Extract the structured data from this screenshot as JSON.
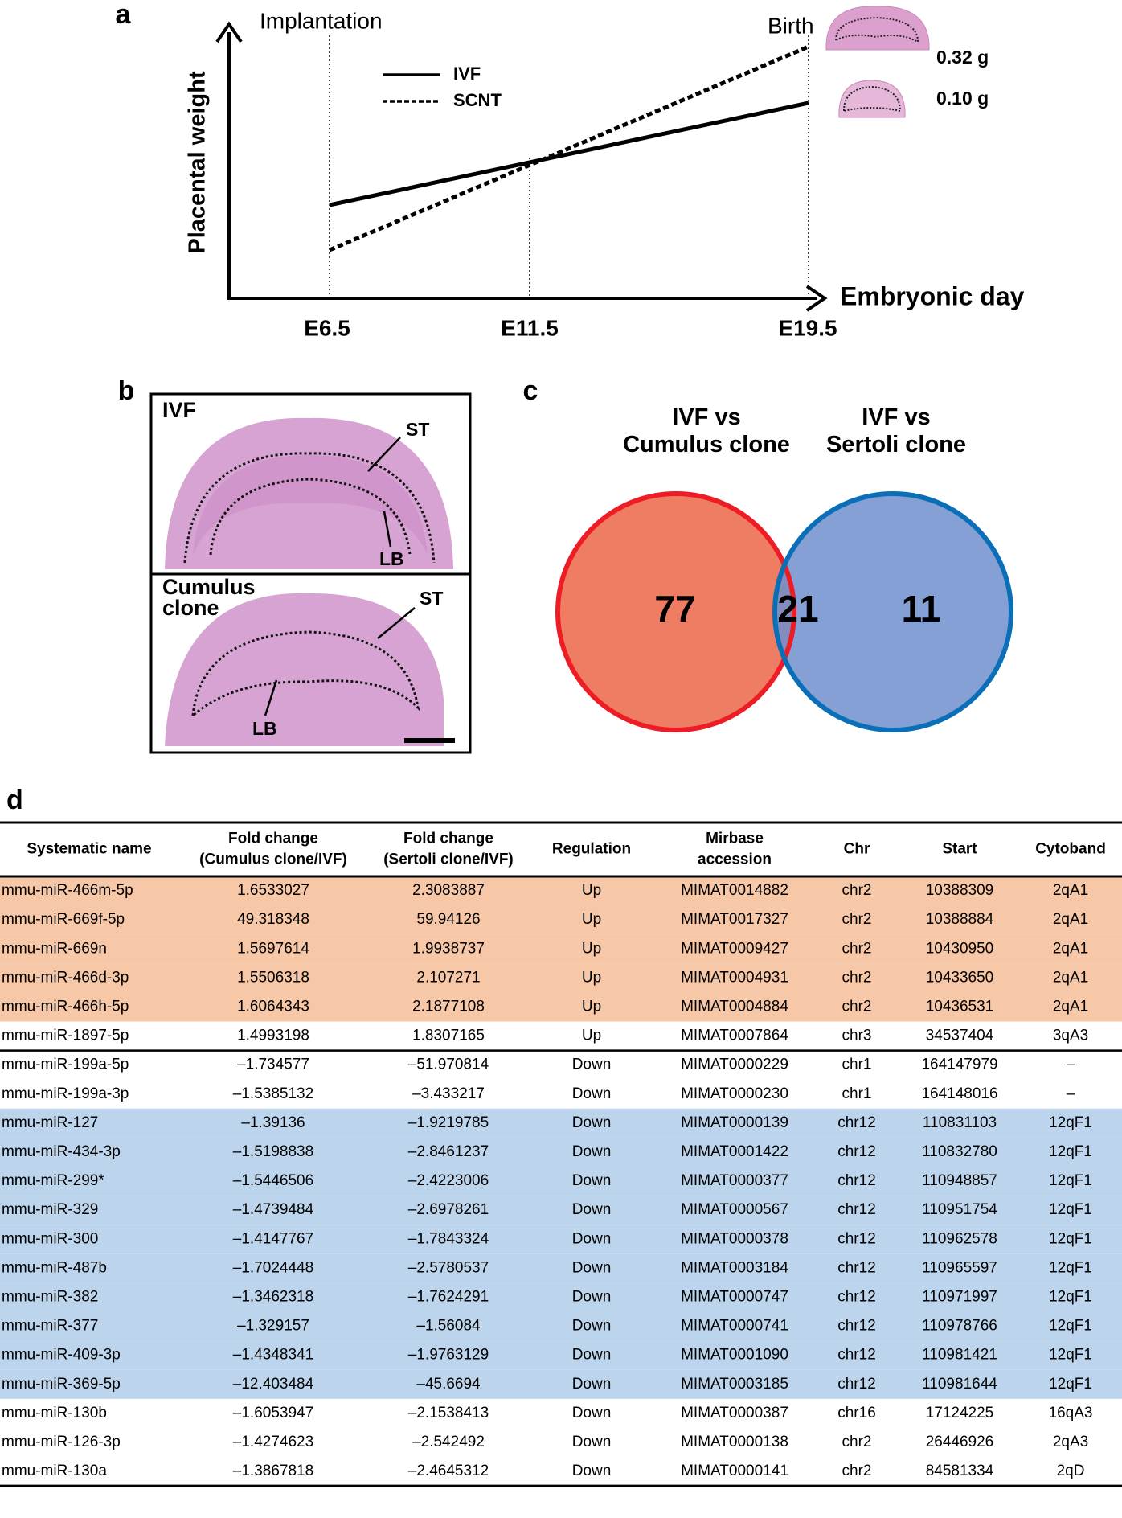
{
  "panel_a": {
    "label": "a",
    "annotations": {
      "implantation": "Implantation",
      "birth": "Birth"
    },
    "legend": [
      "IVF",
      "SCNT"
    ],
    "weights": [
      "0.32 g",
      "0.10 g"
    ],
    "y_axis_label": "Placental weight",
    "x_axis_label": "Embryonic day",
    "x_ticks": [
      "E6.5",
      "E11.5",
      "E19.5"
    ]
  },
  "panel_b": {
    "label": "b",
    "top": {
      "name": [
        "IVF"
      ],
      "st": "ST",
      "lb": "LB"
    },
    "bottom": {
      "name": [
        "Cumulus",
        "clone"
      ],
      "st": "ST",
      "lb": "LB"
    }
  },
  "panel_c": {
    "label": "c",
    "sets": [
      {
        "name": [
          "IVF vs",
          "Cumulus clone"
        ],
        "color": "#ee1c25",
        "fill": "#ef7d63"
      },
      {
        "name": [
          "IVF vs",
          "Sertoli clone"
        ],
        "color": "#0b6fb8",
        "fill": "#6f8fcc"
      }
    ],
    "counts": {
      "left": "77",
      "overlap": "21",
      "right": "11"
    }
  },
  "panel_d": {
    "label": "d",
    "table": {
      "header": [
        [
          "Systematic name"
        ],
        [
          "Fold  change",
          "(Cumulus clone/IVF)"
        ],
        [
          "Fold  change",
          "(Sertoli clone/IVF)"
        ],
        [
          "Regulation"
        ],
        [
          "Mirbase",
          "accession"
        ],
        [
          "Chr"
        ],
        [
          "Start"
        ],
        [
          "Cytoband"
        ]
      ],
      "rows": [
        [
          "mmu-miR-466m-5p",
          "1.6533027",
          "2.3083887",
          "Up",
          "MIMAT0014882",
          "chr2",
          "10388309",
          "2qA1"
        ],
        [
          "mmu-miR-669f-5p",
          "49.318348",
          "59.94126",
          "Up",
          "MIMAT0017327",
          "chr2",
          "10388884",
          "2qA1"
        ],
        [
          "mmu-miR-669n",
          "1.5697614",
          "1.9938737",
          "Up",
          "MIMAT0009427",
          "chr2",
          "10430950",
          "2qA1"
        ],
        [
          "mmu-miR-466d-3p",
          "1.5506318",
          "2.107271",
          "Up",
          "MIMAT0004931",
          "chr2",
          "10433650",
          "2qA1"
        ],
        [
          "mmu-miR-466h-5p",
          "1.6064343",
          "2.1877108",
          "Up",
          "MIMAT0004884",
          "chr2",
          "10436531",
          "2qA1"
        ],
        [
          "mmu-miR-1897-5p",
          "1.4993198",
          "1.8307165",
          "Up",
          "MIMAT0007864",
          "chr3",
          "34537404",
          "3qA3"
        ],
        [
          "mmu-miR-199a-5p",
          "–1.734577",
          "–51.970814",
          "Down",
          "MIMAT0000229",
          "chr1",
          "164147979",
          "–"
        ],
        [
          "mmu-miR-199a-3p",
          "–1.5385132",
          "–3.433217",
          "Down",
          "MIMAT0000230",
          "chr1",
          "164148016",
          "–"
        ],
        [
          "mmu-miR-127",
          "–1.39136",
          "–1.9219785",
          "Down",
          "MIMAT0000139",
          "chr12",
          "110831103",
          "12qF1"
        ],
        [
          "mmu-miR-434-3p",
          "–1.5198838",
          "–2.8461237",
          "Down",
          "MIMAT0001422",
          "chr12",
          "110832780",
          "12qF1"
        ],
        [
          "mmu-miR-299*",
          "–1.5446506",
          "–2.4223006",
          "Down",
          "MIMAT0000377",
          "chr12",
          "110948857",
          "12qF1"
        ],
        [
          "mmu-miR-329",
          "–1.4739484",
          "–2.6978261",
          "Down",
          "MIMAT0000567",
          "chr12",
          "110951754",
          "12qF1"
        ],
        [
          "mmu-miR-300",
          "–1.4147767",
          "–1.7843324",
          "Down",
          "MIMAT0000378",
          "chr12",
          "110962578",
          "12qF1"
        ],
        [
          "mmu-miR-487b",
          "–1.7024448",
          "–2.5780537",
          "Down",
          "MIMAT0003184",
          "chr12",
          "110965597",
          "12qF1"
        ],
        [
          "mmu-miR-382",
          "–1.3462318",
          "–1.7624291",
          "Down",
          "MIMAT0000747",
          "chr12",
          "110971997",
          "12qF1"
        ],
        [
          "mmu-miR-377",
          "–1.329157",
          "–1.56084",
          "Down",
          "MIMAT0000741",
          "chr12",
          "110978766",
          "12qF1"
        ],
        [
          "mmu-miR-409-3p",
          "–1.4348341",
          "–1.9763129",
          "Down",
          "MIMAT0001090",
          "chr12",
          "110981421",
          "12qF1"
        ],
        [
          "mmu-miR-369-5p",
          "–12.403484",
          "–45.6694",
          "Down",
          "MIMAT0003185",
          "chr12",
          "110981644",
          "12qF1"
        ],
        [
          "mmu-miR-130b",
          "–1.6053947",
          "–2.1538413",
          "Down",
          "MIMAT0000387",
          "chr16",
          "17124225",
          "16qA3"
        ],
        [
          "mmu-miR-126-3p",
          "–1.4274623",
          "–2.542492",
          "Down",
          "MIMAT0000138",
          "chr2",
          "26446926",
          "2qA3"
        ],
        [
          "mmu-miR-130a",
          "–1.3867818",
          "–2.4645312",
          "Down",
          "MIMAT0000141",
          "chr2",
          "84581334",
          "2qD"
        ]
      ]
    }
  }
}
